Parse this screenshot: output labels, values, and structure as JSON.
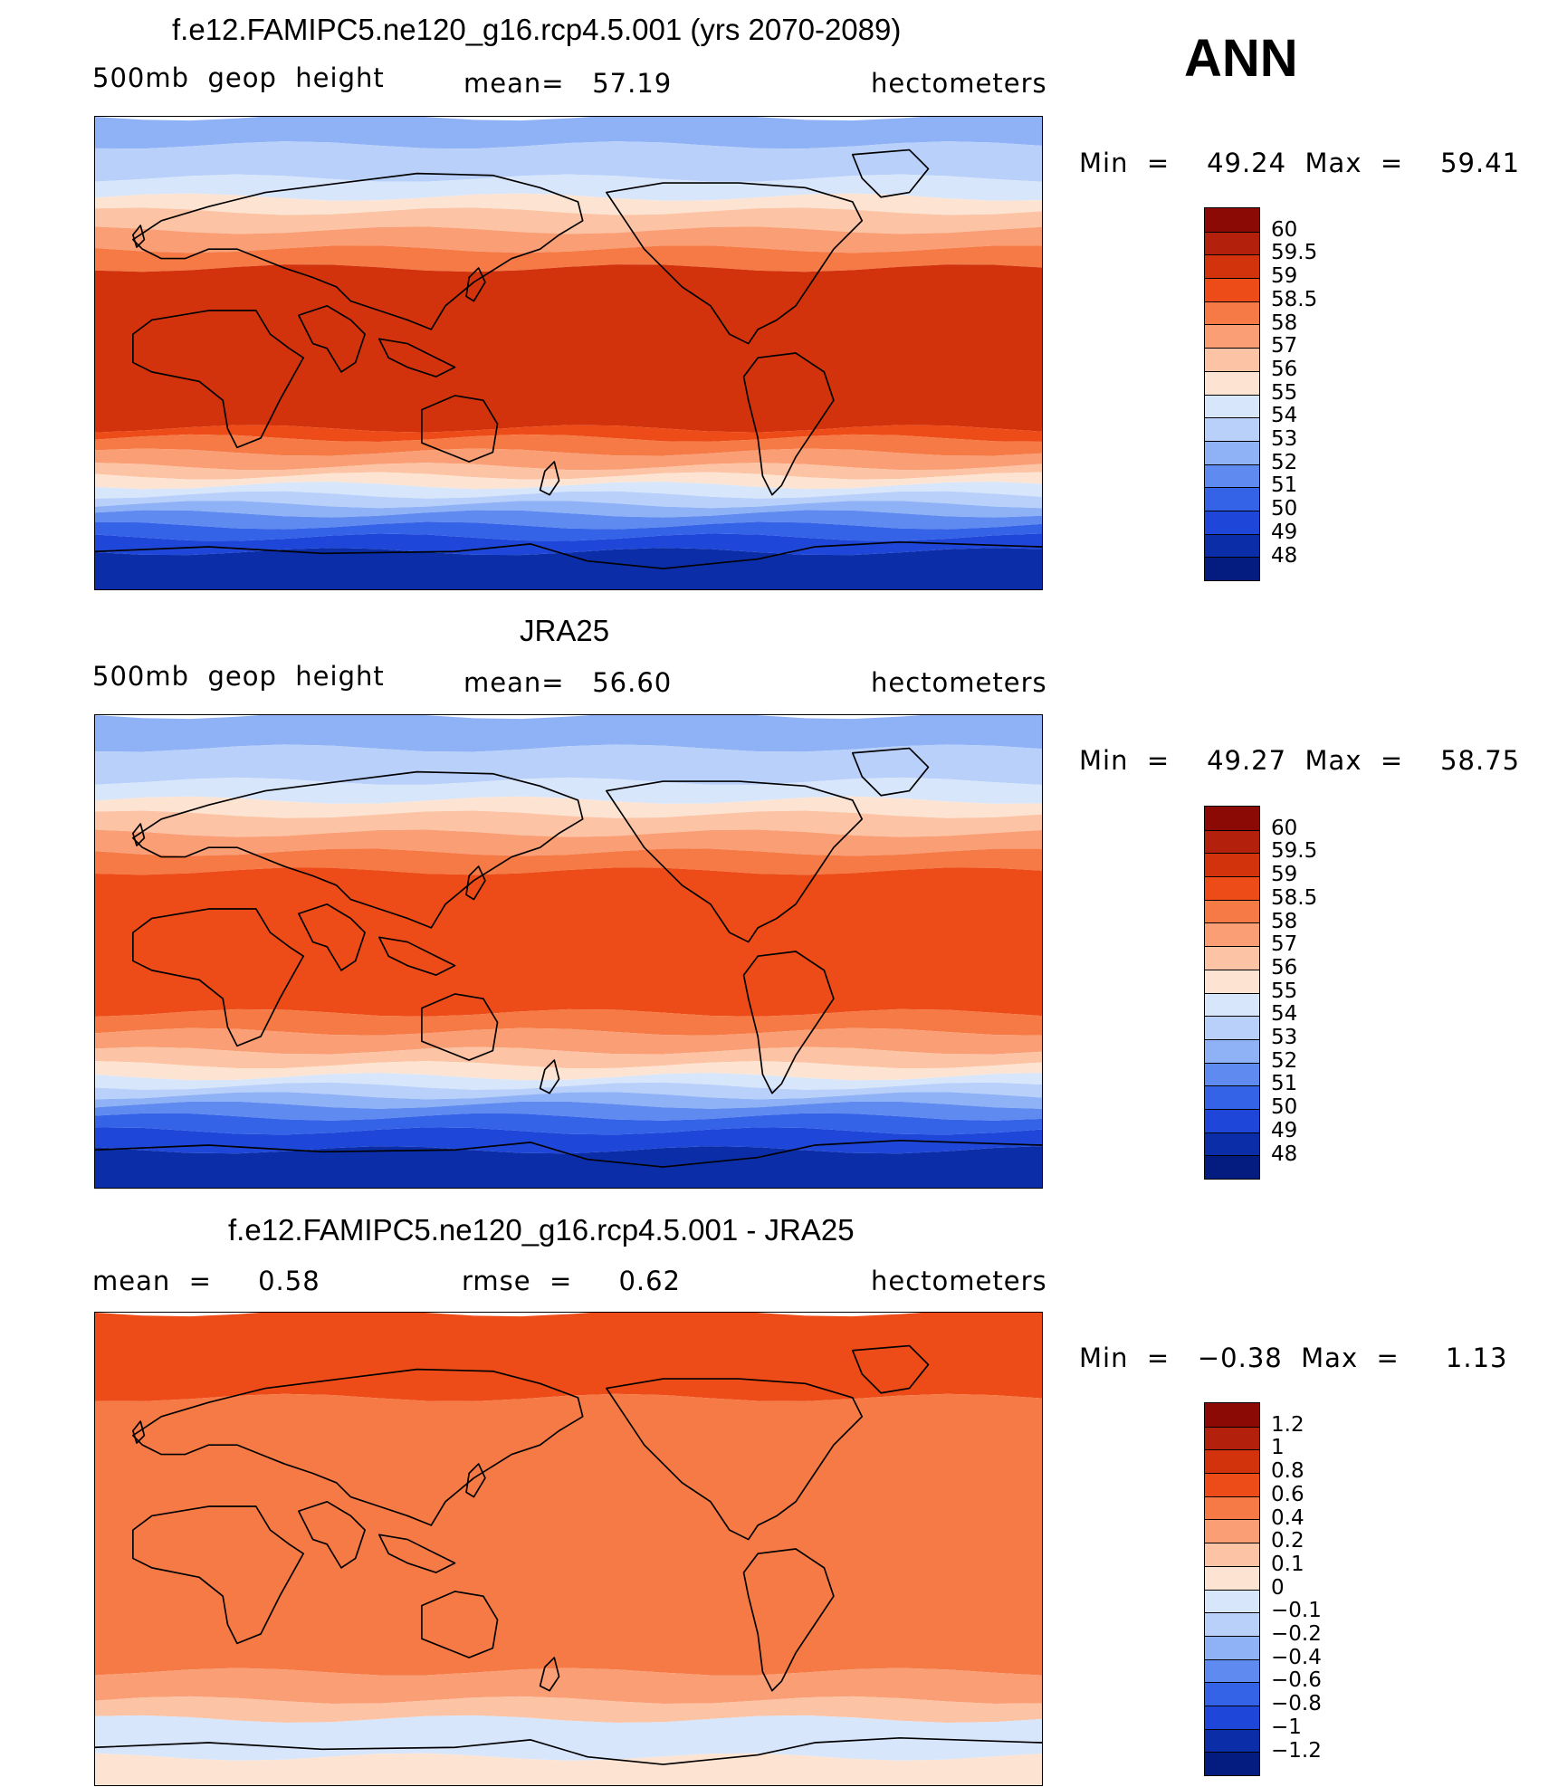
{
  "season": "ANN",
  "panels": [
    {
      "title": "f.e12.FAMIPC5.ne120_g16.rcp4.5.001 (yrs 2070-2089)",
      "left_label": "500mb  geop  height",
      "center_label": "mean=   57.19",
      "right_label": "hectometers",
      "minmax": "Min  =    49.24  Max  =    59.41",
      "colorbar": {
        "levels": [
          "60",
          "59.5",
          "59",
          "58.5",
          "58",
          "57",
          "56",
          "55",
          "54",
          "53",
          "52",
          "51",
          "50",
          "49",
          "48"
        ],
        "colors": [
          "#8b0a06",
          "#b3200c",
          "#d2330d",
          "#ed4b17",
          "#f67a45",
          "#fa9e75",
          "#fcc3a4",
          "#fde4d2",
          "#d8e6fb",
          "#b8d0fa",
          "#8fb2f6",
          "#5f8af0",
          "#3563e8",
          "#1e47d9",
          "#0b2ea8",
          "#041c80"
        ]
      },
      "map": {
        "bands": [
          [
            0,
            "#8fb2f6"
          ],
          [
            6,
            "#b8d0fa"
          ],
          [
            13,
            "#d8e6fb"
          ],
          [
            17,
            "#fde4d2"
          ],
          [
            20,
            "#fcc3a4"
          ],
          [
            24,
            "#fa9e75"
          ],
          [
            28,
            "#f67a45"
          ],
          [
            32,
            "#d2330d"
          ],
          [
            66,
            "#ed4b17"
          ],
          [
            68,
            "#f67a45"
          ],
          [
            71,
            "#fa9e75"
          ],
          [
            74,
            "#fcc3a4"
          ],
          [
            76,
            "#fde4d2"
          ],
          [
            78,
            "#d8e6fb"
          ],
          [
            80,
            "#b8d0fa"
          ],
          [
            82,
            "#8fb2f6"
          ],
          [
            84,
            "#5f8af0"
          ],
          [
            86.5,
            "#3563e8"
          ],
          [
            89,
            "#1e47d9"
          ],
          [
            92,
            "#0b2ea8"
          ]
        ]
      }
    },
    {
      "title": "JRA25",
      "left_label": "500mb  geop  height",
      "center_label": "mean=   56.60",
      "right_label": "hectometers",
      "minmax": "Min  =    49.27  Max  =    58.75",
      "colorbar": {
        "levels": [
          "60",
          "59.5",
          "59",
          "58.5",
          "58",
          "57",
          "56",
          "55",
          "54",
          "53",
          "52",
          "51",
          "50",
          "49",
          "48"
        ],
        "colors": [
          "#8b0a06",
          "#b3200c",
          "#d2330d",
          "#ed4b17",
          "#f67a45",
          "#fa9e75",
          "#fcc3a4",
          "#fde4d2",
          "#d8e6fb",
          "#b8d0fa",
          "#8fb2f6",
          "#5f8af0",
          "#3563e8",
          "#1e47d9",
          "#0b2ea8",
          "#041c80"
        ]
      },
      "map": {
        "bands": [
          [
            0,
            "#8fb2f6"
          ],
          [
            7,
            "#b8d0fa"
          ],
          [
            14,
            "#d8e6fb"
          ],
          [
            18,
            "#fde4d2"
          ],
          [
            21,
            "#fcc3a4"
          ],
          [
            25,
            "#fa9e75"
          ],
          [
            29,
            "#f67a45"
          ],
          [
            33,
            "#ed4b17"
          ],
          [
            63,
            "#f67a45"
          ],
          [
            67,
            "#fa9e75"
          ],
          [
            71,
            "#fcc3a4"
          ],
          [
            74,
            "#fde4d2"
          ],
          [
            76.5,
            "#d8e6fb"
          ],
          [
            78.5,
            "#b8d0fa"
          ],
          [
            80.5,
            "#8fb2f6"
          ],
          [
            82.5,
            "#5f8af0"
          ],
          [
            85,
            "#3563e8"
          ],
          [
            88,
            "#1e47d9"
          ],
          [
            92,
            "#0b2ea8"
          ]
        ]
      }
    },
    {
      "title": "f.e12.FAMIPC5.ne120_g16.rcp4.5.001 - JRA25",
      "left_label": "mean  =     0.58",
      "center_label": "rmse  =     0.62",
      "right_label": "hectometers",
      "minmax": "Min  =   −0.38  Max  =     1.13",
      "colorbar": {
        "levels": [
          "1.2",
          "1",
          "0.8",
          "0.6",
          "0.4",
          "0.2",
          "0.1",
          "0",
          "−0.1",
          "−0.2",
          "−0.4",
          "−0.6",
          "−0.8",
          "−1",
          "−1.2"
        ],
        "colors": [
          "#8b0a06",
          "#b3200c",
          "#d2330d",
          "#ed4b17",
          "#f67a45",
          "#fa9e75",
          "#fcc3a4",
          "#fde4d2",
          "#d8e6fb",
          "#b8d0fa",
          "#8fb2f6",
          "#5f8af0",
          "#3563e8",
          "#1e47d9",
          "#0b2ea8",
          "#041c80"
        ]
      },
      "map": {
        "bands": [
          [
            0,
            "#ed4b17"
          ],
          [
            18,
            "#f67a45"
          ],
          [
            76,
            "#fa9e75"
          ],
          [
            82,
            "#fcc3a4"
          ],
          [
            86,
            "#d8e6fb"
          ],
          [
            94,
            "#fde4d2"
          ]
        ]
      }
    }
  ]
}
